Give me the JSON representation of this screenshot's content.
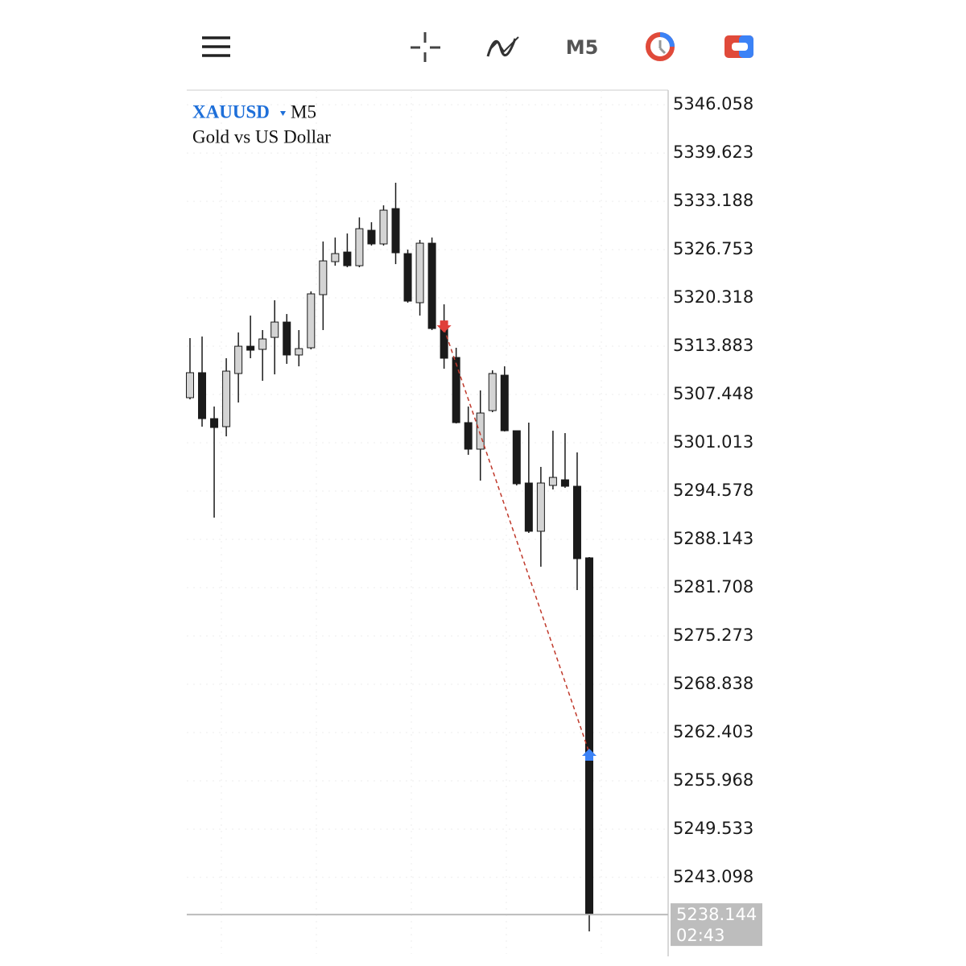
{
  "toolbar": {
    "timeframe": "M5"
  },
  "chart_data": {
    "type": "candlestick",
    "title": "XAUUSD",
    "timeframe": "M5",
    "subtitle": "Gold vs US Dollar",
    "categories": [
      null,
      null,
      null,
      null,
      null,
      null,
      null,
      null,
      null,
      null,
      null,
      null,
      null,
      null,
      null,
      null,
      null,
      null,
      null,
      null,
      null,
      null,
      null,
      null,
      null,
      null,
      null,
      null,
      null,
      null,
      null,
      null,
      null,
      null
    ],
    "open": [
      5307.02,
      5310.35,
      5304.23,
      5303.16,
      5310.24,
      5313.88,
      5313.46,
      5315.06,
      5317.1,
      5312.71,
      5313.67,
      5320.75,
      5325.15,
      5326.43,
      5324.61,
      5329.33,
      5327.51,
      5332.22,
      5326.22,
      5319.68,
      5327.61,
      5316.24,
      5312.38,
      5303.7,
      5300.16,
      5305.3,
      5310.02,
      5302.62,
      5295.65,
      5289.22,
      5295.33,
      5296.08,
      5295.22,
      5285.68
    ],
    "high": [
      5314.96,
      5315.17,
      5305.84,
      5312.28,
      5315.71,
      5317.96,
      5316.03,
      5320.0,
      5318.17,
      5316.03,
      5321.18,
      5327.83,
      5328.36,
      5328.9,
      5331.04,
      5330.4,
      5332.65,
      5335.66,
      5326.75,
      5328.04,
      5328.36,
      5319.46,
      5313.67,
      5305.84,
      5307.99,
      5310.67,
      5311.2,
      5302.62,
      5303.7,
      5297.8,
      5302.62,
      5302.3,
      5299.73,
      5285.79
    ],
    "low": [
      5306.8,
      5303.16,
      5291.04,
      5301.87,
      5306.38,
      5312.28,
      5309.27,
      5310.13,
      5311.53,
      5311.2,
      5313.46,
      5316.03,
      5324.61,
      5324.4,
      5324.4,
      5327.29,
      5327.29,
      5324.82,
      5319.68,
      5317.96,
      5316.03,
      5310.88,
      5303.59,
      5299.41,
      5295.97,
      5305.09,
      5302.52,
      5295.33,
      5289.0,
      5284.5,
      5294.79,
      5295.01,
      5281.39,
      5235.91
    ],
    "close": [
      5310.35,
      5304.23,
      5303.05,
      5310.56,
      5313.88,
      5313.35,
      5314.85,
      5317.1,
      5312.71,
      5313.56,
      5320.86,
      5325.25,
      5326.22,
      5324.61,
      5329.54,
      5327.51,
      5332.01,
      5326.33,
      5319.89,
      5327.61,
      5316.24,
      5312.28,
      5303.7,
      5300.16,
      5304.98,
      5310.24,
      5302.62,
      5295.55,
      5289.22,
      5295.65,
      5296.4,
      5295.22,
      5285.57,
      5238.144
    ],
    "up_color": "#d4d4d4",
    "down_color": "#1a1a1a",
    "ylim": [
      5232.9,
      5348.0
    ],
    "yticks": [
      5346.058,
      5339.623,
      5333.188,
      5326.753,
      5320.318,
      5313.883,
      5307.448,
      5301.013,
      5294.578,
      5288.143,
      5281.708,
      5275.273,
      5268.838,
      5262.403,
      5255.968,
      5249.533,
      5243.098
    ],
    "grid": true,
    "markers": [
      {
        "type": "sell",
        "candle": 21,
        "price": 5316.24,
        "color": "#e0403a"
      },
      {
        "type": "buy",
        "candle": 33,
        "price": 5259.72,
        "color": "#3b82f6"
      }
    ],
    "trade_line_color": "#c0392b",
    "last_price": 5238.144,
    "last_time": "02:43"
  }
}
